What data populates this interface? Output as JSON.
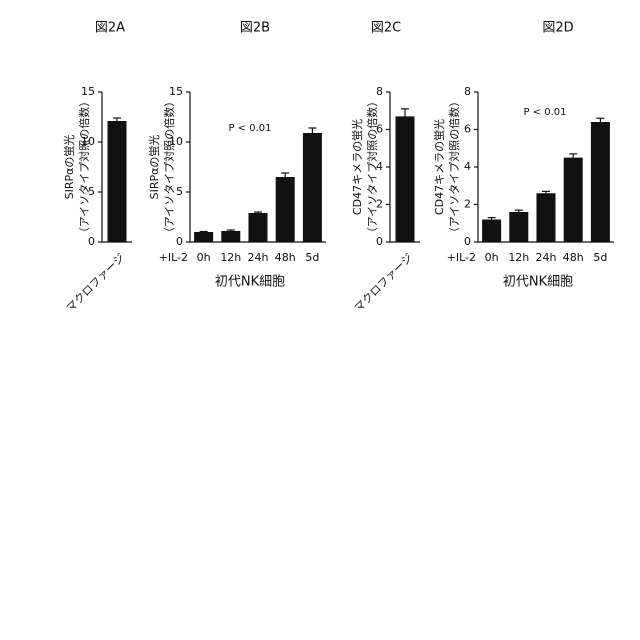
{
  "chart_data": [
    {
      "type": "bar",
      "title": "図2A",
      "ylabel": [
        "SIRPαの蛍光",
        "（アイソタイプ対照の倍数）"
      ],
      "categories": [
        "マクロファージ"
      ],
      "values": [
        12.1
      ],
      "errors": [
        0.3
      ],
      "color": "#111111",
      "ylim": [
        0,
        15
      ],
      "yticks": [
        0,
        5,
        10,
        15
      ]
    },
    {
      "type": "bar",
      "title": "図2B",
      "ylabel": [
        "SIRPαの蛍光",
        "（アイソタイプ対照の倍数）"
      ],
      "x_prefix_label": "+IL-2",
      "xlabel": "初代NK細胞",
      "annotation": "P < 0.01",
      "categories": [
        "0h",
        "12h",
        "24h",
        "48h",
        "5d"
      ],
      "values": [
        1.0,
        1.1,
        2.9,
        6.5,
        10.9
      ],
      "errors": [
        0.05,
        0.1,
        0.1,
        0.4,
        0.5
      ],
      "color": "#111111",
      "ylim": [
        0,
        15
      ],
      "yticks": [
        0,
        5,
        10,
        15
      ]
    },
    {
      "type": "bar",
      "title": "図2C",
      "ylabel": [
        "CD47キメラの蛍光",
        "（アイソタイプ対照の倍数）"
      ],
      "categories": [
        "マクロファージ"
      ],
      "values": [
        6.7
      ],
      "errors": [
        0.4
      ],
      "color": "#111111",
      "ylim": [
        0,
        8
      ],
      "yticks": [
        0,
        2,
        4,
        6,
        8
      ]
    },
    {
      "type": "bar",
      "title": "図2D",
      "ylabel": [
        "CD47キメラの蛍光",
        "（アイソタイプ対照の倍数）"
      ],
      "x_prefix_label": "+IL-2",
      "xlabel": "初代NK細胞",
      "annotation": "P < 0.01",
      "categories": [
        "0h",
        "12h",
        "24h",
        "48h",
        "5d"
      ],
      "values": [
        1.2,
        1.6,
        2.6,
        4.5,
        6.4
      ],
      "errors": [
        0.1,
        0.1,
        0.1,
        0.2,
        0.2
      ],
      "color": "#111111",
      "ylim": [
        0,
        8
      ],
      "yticks": [
        0,
        2,
        4,
        6,
        8
      ]
    }
  ]
}
